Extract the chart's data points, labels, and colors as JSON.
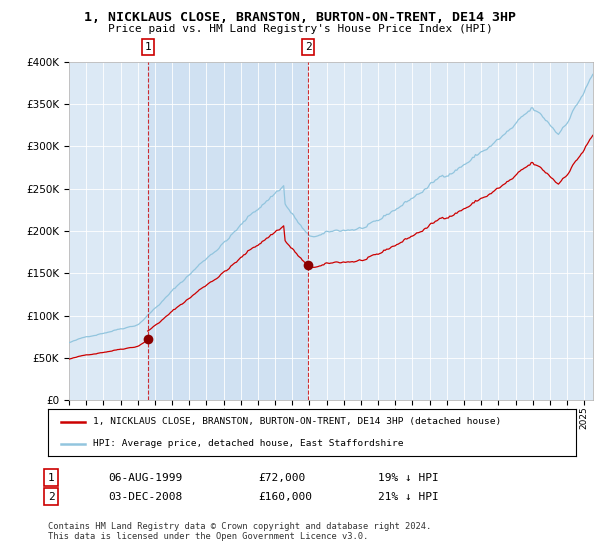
{
  "title": "1, NICKLAUS CLOSE, BRANSTON, BURTON-ON-TRENT, DE14 3HP",
  "subtitle": "Price paid vs. HM Land Registry's House Price Index (HPI)",
  "marker1_year": 1999.58,
  "marker1_value": 72000,
  "marker1_label": "1",
  "marker1_date": "06-AUG-1999",
  "marker1_price": "£72,000",
  "marker1_hpi": "19% ↓ HPI",
  "marker2_year": 2008.92,
  "marker2_value": 160000,
  "marker2_label": "2",
  "marker2_date": "03-DEC-2008",
  "marker2_price": "£160,000",
  "marker2_hpi": "21% ↓ HPI",
  "hpi_color": "#92c5de",
  "prop_color": "#cc0000",
  "marker_color": "#8b0000",
  "vline_color": "#cc0000",
  "bg_color": "#dce9f5",
  "bg_color2": "#c8ddf0",
  "ylim": [
    0,
    400000
  ],
  "xlim": [
    1995.0,
    2025.5
  ],
  "legend_label_prop": "1, NICKLAUS CLOSE, BRANSTON, BURTON-ON-TRENT, DE14 3HP (detached house)",
  "legend_label_hpi": "HPI: Average price, detached house, East Staffordshire",
  "footer": "Contains HM Land Registry data © Crown copyright and database right 2024.\nThis data is licensed under the Open Government Licence v3.0."
}
